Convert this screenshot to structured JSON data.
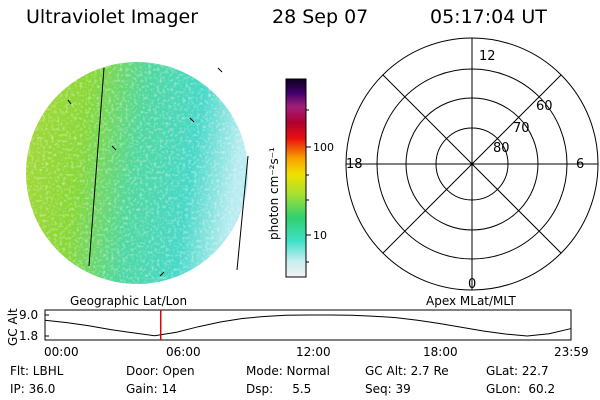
{
  "header": {
    "instrument": "Ultraviolet Imager",
    "date": "28 Sep 07",
    "time": "05:17:04 UT"
  },
  "colorbar": {
    "label": "photon cm⁻²s⁻¹",
    "ticks": [
      "100",
      "10"
    ]
  },
  "polar_plot": {
    "mlt_labels": [
      "12",
      "18",
      "6",
      "0"
    ],
    "mlat_labels": [
      "60",
      "70",
      "80"
    ]
  },
  "timeline": {
    "left_label": "Geographic Lat/Lon",
    "right_label": "Apex MLat/MLT",
    "axis_title": "GC Alt",
    "y_ticks": [
      "9.0",
      "1.8"
    ],
    "x_ticks": [
      "00:00",
      "06:00",
      "12:00",
      "18:00",
      "23:59"
    ]
  },
  "info": {
    "flt": "Flt: LBHL",
    "door": "Door: Open",
    "mode": "Mode: Normal",
    "gc_alt": "GC Alt: 2.7 Re",
    "glat": "GLat:  22.7",
    "ip": "IP: 36.0",
    "gain": "Gain: 14",
    "dsp": "Dsp:     5.5",
    "seq": "Seq: 39",
    "glon": "GLon:  60.2"
  },
  "chart_data": {
    "type": "line",
    "title": "GC Alt",
    "xlabel": "",
    "ylabel": "GC Alt",
    "xlim": [
      0,
      24
    ],
    "ylim": [
      1.8,
      9.0
    ],
    "x": [
      0,
      1,
      2,
      3,
      4,
      5,
      6,
      7,
      8,
      9,
      10,
      11,
      12,
      13,
      14,
      15,
      16,
      17,
      18,
      19,
      20,
      21,
      22,
      23,
      23.98
    ],
    "series": [
      {
        "name": "GC Alt",
        "values": [
          7.2,
          6.4,
          5.3,
          4.0,
          2.9,
          1.9,
          3.1,
          5.0,
          6.6,
          7.8,
          8.5,
          8.9,
          9.0,
          9.0,
          8.9,
          8.6,
          8.1,
          7.2,
          6.1,
          4.8,
          3.5,
          2.5,
          1.8,
          2.6,
          4.3
        ]
      }
    ],
    "current_time_marker": 5.28
  }
}
